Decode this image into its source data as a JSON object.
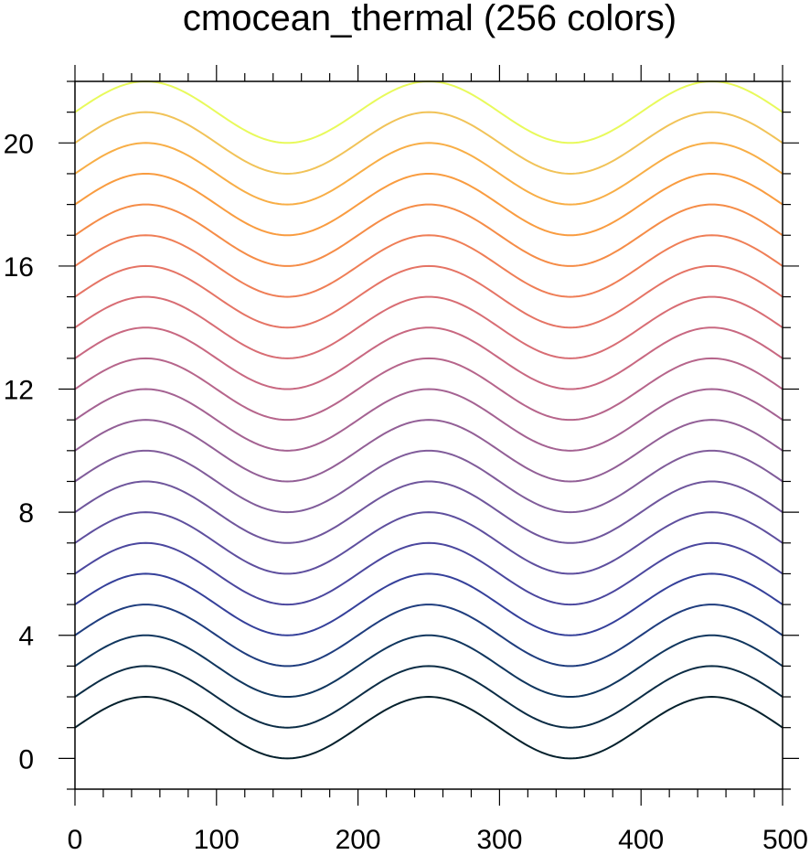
{
  "chart_data": {
    "type": "line",
    "title": "cmocean_thermal (256 colors)",
    "xlabel": "",
    "ylabel": "",
    "xlim": [
      0,
      500
    ],
    "ylim": [
      -1,
      22
    ],
    "x_ticks": [
      0,
      100,
      200,
      300,
      400,
      500
    ],
    "x_tick_labels": [
      "0",
      "100",
      "200",
      "300",
      "400",
      "500"
    ],
    "y_ticks": [
      0,
      4,
      8,
      12,
      16,
      20
    ],
    "y_tick_labels": [
      "0",
      "4",
      "8",
      "12",
      "16",
      "20"
    ],
    "grid": false,
    "legend": "none",
    "curve": {
      "function": "offset + sin(2*pi*(x-0)/200)",
      "period": 200,
      "amplitude": 1,
      "x_start": 0,
      "x_end": 500
    },
    "series": [
      {
        "offset": 1,
        "color": "#04202c"
      },
      {
        "offset": 2,
        "color": "#0b2c45"
      },
      {
        "offset": 3,
        "color": "#10365e"
      },
      {
        "offset": 4,
        "color": "#1f3d7e"
      },
      {
        "offset": 5,
        "color": "#35409a"
      },
      {
        "offset": 6,
        "color": "#4b479e"
      },
      {
        "offset": 7,
        "color": "#5e4f9e"
      },
      {
        "offset": 8,
        "color": "#6f569c"
      },
      {
        "offset": 9,
        "color": "#805c9a"
      },
      {
        "offset": 10,
        "color": "#925f96"
      },
      {
        "offset": 11,
        "color": "#a46292"
      },
      {
        "offset": 12,
        "color": "#b6658b"
      },
      {
        "offset": 13,
        "color": "#c86881"
      },
      {
        "offset": 14,
        "color": "#d86d74"
      },
      {
        "offset": 15,
        "color": "#e57465"
      },
      {
        "offset": 16,
        "color": "#ef7e56"
      },
      {
        "offset": 17,
        "color": "#f58c47"
      },
      {
        "offset": 18,
        "color": "#f99c40"
      },
      {
        "offset": 19,
        "color": "#f8ae46"
      },
      {
        "offset": 20,
        "color": "#f1c358"
      },
      {
        "offset": 21,
        "color": "#e8fa5b"
      }
    ]
  }
}
